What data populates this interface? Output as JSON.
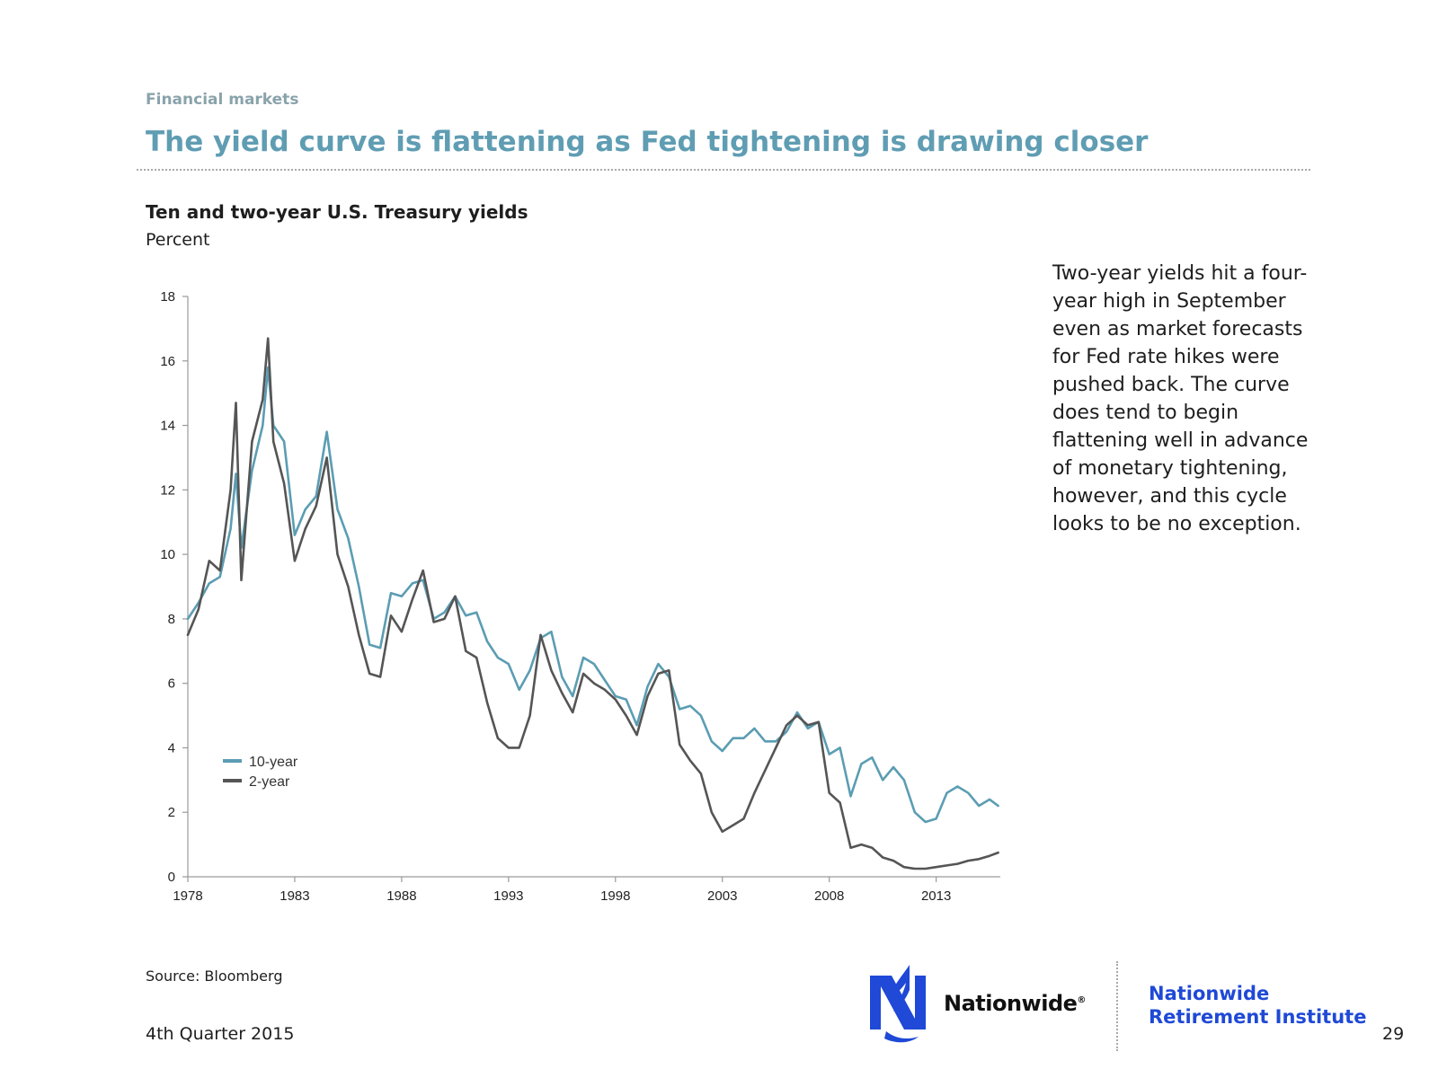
{
  "header": {
    "section": "Financial markets",
    "title": "The yield curve is flattening as Fed tightening is drawing closer"
  },
  "chart_header": {
    "title": "Ten and two-year U.S. Treasury yields",
    "unit": "Percent"
  },
  "commentary": "Two-year yields hit a four-year high in September even as market forecasts for Fed rate hikes were pushed back. The curve does tend to begin flattening well in advance of monetary tightening, however, and this cycle looks to be no exception.",
  "footer": {
    "source": "Source: Bloomberg",
    "quarter": "4th Quarter 2015",
    "page_number": "29",
    "brand": "Nationwide",
    "brand_mark": "®",
    "institute_line1": "Nationwide",
    "institute_line2": "Retirement Institute"
  },
  "colors": {
    "ten_year": "#5b9db3",
    "two_year": "#555555",
    "axis": "#9a9a9a",
    "brand_blue": "#1f49d6"
  },
  "icons": {
    "logo": "eagle-logo-icon"
  },
  "chart_data": {
    "type": "line",
    "title": "Ten and two-year U.S. Treasury yields",
    "ylabel": "Percent",
    "xlabel": "",
    "xlim": [
      1978,
      2016
    ],
    "ylim": [
      0,
      18
    ],
    "x_ticks": [
      1978,
      1983,
      1988,
      1993,
      1998,
      2003,
      2008,
      2013
    ],
    "x_tick_labels": [
      "1978",
      "1983",
      "1988",
      "1993",
      "1998",
      "2003",
      "2008",
      "2013"
    ],
    "y_ticks": [
      0,
      2,
      4,
      6,
      8,
      10,
      12,
      14,
      16,
      18
    ],
    "y_tick_labels": [
      "0",
      "2",
      "4",
      "6",
      "8",
      "10",
      "12",
      "14",
      "16",
      "18"
    ],
    "grid": false,
    "legend_position": "bottom-left",
    "series": [
      {
        "name": "10-year",
        "color": "#5b9db3",
        "x": [
          1978,
          1978.5,
          1979,
          1979.5,
          1980,
          1980.25,
          1980.5,
          1981,
          1981.5,
          1981.75,
          1982,
          1982.5,
          1983,
          1983.5,
          1984,
          1984.5,
          1985,
          1985.5,
          1986,
          1986.5,
          1987,
          1987.5,
          1988,
          1988.5,
          1989,
          1989.5,
          1990,
          1990.5,
          1991,
          1991.5,
          1992,
          1992.5,
          1993,
          1993.5,
          1994,
          1994.5,
          1995,
          1995.5,
          1996,
          1996.5,
          1997,
          1997.5,
          1998,
          1998.5,
          1999,
          1999.5,
          2000,
          2000.5,
          2001,
          2001.5,
          2002,
          2002.5,
          2003,
          2003.5,
          2004,
          2004.5,
          2005,
          2005.5,
          2006,
          2006.5,
          2007,
          2007.5,
          2008,
          2008.5,
          2009,
          2009.5,
          2010,
          2010.5,
          2011,
          2011.5,
          2012,
          2012.5,
          2013,
          2013.5,
          2014,
          2014.5,
          2015,
          2015.5,
          2015.9
        ],
        "values": [
          8.0,
          8.5,
          9.1,
          9.3,
          10.8,
          12.5,
          10.2,
          12.6,
          14.0,
          15.8,
          14.0,
          13.5,
          10.6,
          11.4,
          11.8,
          13.8,
          11.4,
          10.5,
          9.0,
          7.2,
          7.1,
          8.8,
          8.7,
          9.1,
          9.2,
          8.0,
          8.2,
          8.7,
          8.1,
          8.2,
          7.3,
          6.8,
          6.6,
          5.8,
          6.4,
          7.4,
          7.6,
          6.2,
          5.6,
          6.8,
          6.6,
          6.1,
          5.6,
          5.5,
          4.7,
          5.9,
          6.6,
          6.2,
          5.2,
          5.3,
          5.0,
          4.2,
          3.9,
          4.3,
          4.3,
          4.6,
          4.2,
          4.2,
          4.5,
          5.1,
          4.6,
          4.8,
          3.8,
          4.0,
          2.5,
          3.5,
          3.7,
          3.0,
          3.4,
          3.0,
          2.0,
          1.7,
          1.8,
          2.6,
          2.8,
          2.6,
          2.2,
          2.4,
          2.2
        ]
      },
      {
        "name": "2-year",
        "color": "#555555",
        "x": [
          1978,
          1978.5,
          1979,
          1979.5,
          1980,
          1980.25,
          1980.5,
          1981,
          1981.5,
          1981.75,
          1982,
          1982.5,
          1983,
          1983.5,
          1984,
          1984.5,
          1985,
          1985.5,
          1986,
          1986.5,
          1987,
          1987.5,
          1988,
          1988.5,
          1989,
          1989.5,
          1990,
          1990.5,
          1991,
          1991.5,
          1992,
          1992.5,
          1993,
          1993.5,
          1994,
          1994.5,
          1995,
          1995.5,
          1996,
          1996.5,
          1997,
          1997.5,
          1998,
          1998.5,
          1999,
          1999.5,
          2000,
          2000.5,
          2001,
          2001.5,
          2002,
          2002.5,
          2003,
          2003.5,
          2004,
          2004.5,
          2005,
          2005.5,
          2006,
          2006.5,
          2007,
          2007.5,
          2008,
          2008.5,
          2009,
          2009.5,
          2010,
          2010.5,
          2011,
          2011.5,
          2012,
          2012.5,
          2013,
          2013.5,
          2014,
          2014.5,
          2015,
          2015.5,
          2015.9
        ],
        "values": [
          7.5,
          8.3,
          9.8,
          9.5,
          12.0,
          14.7,
          9.2,
          13.5,
          14.8,
          16.7,
          13.5,
          12.2,
          9.8,
          10.8,
          11.5,
          13.0,
          10.0,
          9.0,
          7.5,
          6.3,
          6.2,
          8.1,
          7.6,
          8.6,
          9.5,
          7.9,
          8.0,
          8.7,
          7.0,
          6.8,
          5.4,
          4.3,
          4.0,
          4.0,
          5.0,
          7.5,
          6.4,
          5.7,
          5.1,
          6.3,
          6.0,
          5.8,
          5.5,
          5.0,
          4.4,
          5.6,
          6.3,
          6.4,
          4.1,
          3.6,
          3.2,
          2.0,
          1.4,
          1.6,
          1.8,
          2.6,
          3.3,
          4.0,
          4.7,
          5.0,
          4.7,
          4.8,
          2.6,
          2.3,
          0.9,
          1.0,
          0.9,
          0.6,
          0.5,
          0.3,
          0.25,
          0.25,
          0.3,
          0.35,
          0.4,
          0.5,
          0.55,
          0.65,
          0.75
        ]
      }
    ]
  }
}
